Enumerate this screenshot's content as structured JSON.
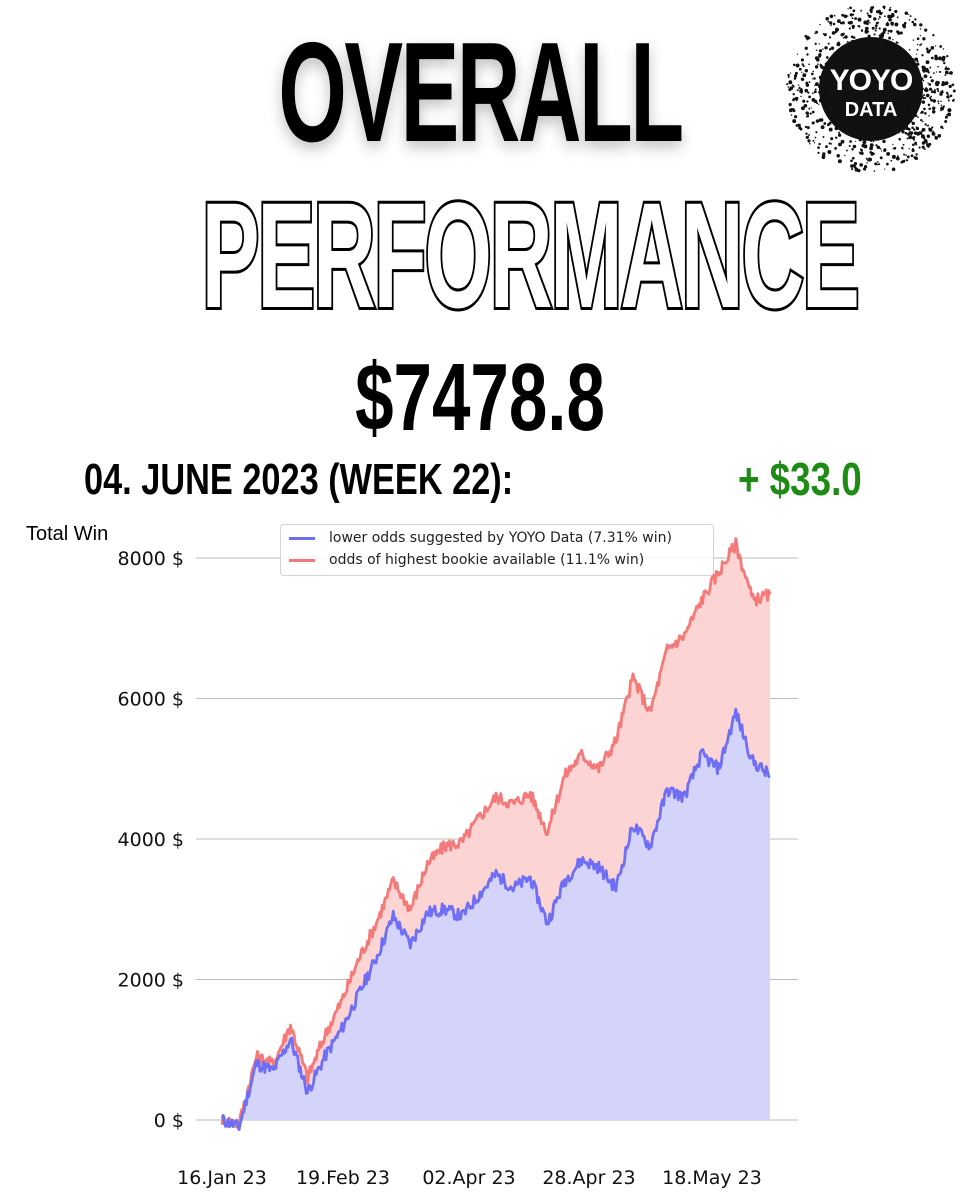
{
  "header": {
    "title_line1": "OVERALL",
    "title_line2": "PERFORMANCE",
    "total": "$7478.8",
    "week_label": "04. JUNE 2023 (WEEK 22):",
    "week_delta": "+ $33.0"
  },
  "logo": {
    "line1": "YOYO",
    "line2": "DATA"
  },
  "chart_data": {
    "type": "area",
    "ylabel": "Total Win",
    "ylim": [
      -100,
      8300
    ],
    "yticks": [
      0,
      2000,
      4000,
      6000,
      8000
    ],
    "ytick_labels": [
      "0 $",
      "2000 $",
      "4000 $",
      "6000 $",
      "8000 $"
    ],
    "xtick_labels": [
      "16.Jan 23",
      "19.Feb 23",
      "02.Apr 23",
      "28.Apr 23",
      "18.May 23"
    ],
    "grid": "horizontal",
    "legend": "top-center",
    "series": [
      {
        "name": "lower odds suggested by YOYO Data (7.31% win)",
        "color": "#6f6ff5",
        "fill": "#d4d4fb",
        "values": [
          0,
          -100,
          800,
          700,
          1150,
          400,
          900,
          1300,
          1800,
          2300,
          2900,
          2500,
          2950,
          3000,
          2900,
          3200,
          3500,
          3300,
          3450,
          2800,
          3400,
          3700,
          3600,
          3300,
          4200,
          3900,
          4700,
          4600,
          5200,
          5000,
          5800,
          5100,
          4900
        ]
      },
      {
        "name": "odds of highest bookie available (11.1% win)",
        "color": "#f47a7a",
        "fill": "#fcd4d4",
        "values": [
          0,
          -50,
          900,
          800,
          1350,
          600,
          1200,
          1700,
          2300,
          2800,
          3400,
          3000,
          3650,
          3900,
          3950,
          4300,
          4600,
          4500,
          4650,
          4100,
          4900,
          5200,
          5000,
          5400,
          6300,
          5800,
          6700,
          6900,
          7400,
          7800,
          8200,
          7400,
          7480
        ]
      }
    ]
  }
}
